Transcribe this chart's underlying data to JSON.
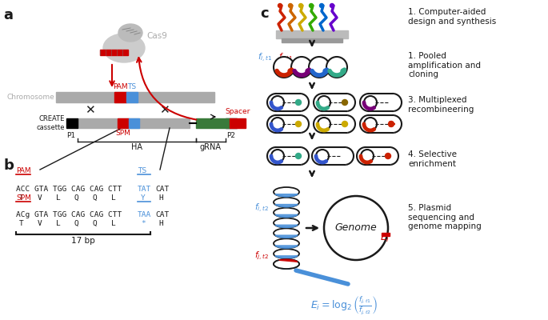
{
  "panel_a_label": "a",
  "panel_b_label": "b",
  "panel_c_label": "c",
  "cas9_label": "Cas9",
  "chromosome_label": "Chromosome",
  "pam_label": "PAM",
  "ts_label": "TS",
  "spm_label": "SPM",
  "spacer_label": "Spacer",
  "ha_label": "HA",
  "grna_label": "gRNA",
  "p1_label": "P1",
  "p2_label": "P2",
  "bp_label": "17 bp",
  "step1_text": "1. Computer-aided\ndesign and synthesis",
  "step2_text": "1. Pooled\namplification and\ncloning",
  "step3_text": "3. Multiplexed\nrecombineering",
  "step4_text": "4. Selective\nenrichment",
  "step5_text": "5. Plasmid\nsequencing and\ngenome mapping",
  "genome_label": "Genome",
  "red": "#cc0000",
  "blue": "#4a90d9",
  "gray": "#aaaaaa",
  "dark": "#1a1a1a",
  "green": "#3a7a3a",
  "bg": "#ffffff",
  "strand_colors": [
    "#cc2200",
    "#cc6600",
    "#ccaa00",
    "#33aa00",
    "#0066cc",
    "#6600cc"
  ],
  "pool_colors": [
    [
      "#cc2200",
      "#770077"
    ],
    [
      "#33aa00",
      "#008888"
    ],
    [
      "#33aa00",
      "#6600cc"
    ]
  ],
  "multi_row1_colors": [
    [
      "#3355cc",
      "#008888"
    ],
    [
      "#33aa00",
      "#008888"
    ],
    [
      "#6600cc",
      "#884400"
    ]
  ],
  "multi_row2_colors": [
    [
      "#3355cc",
      "#ccaa00"
    ],
    [
      "#ccaa00",
      "#ccaa00"
    ],
    [
      "#cc2200",
      "#cc2200"
    ]
  ],
  "sel_colors": [
    [
      "#3355cc",
      "#008888"
    ],
    [
      "#3355cc",
      "#008888"
    ],
    [
      "#cc2200",
      "#cc2200"
    ]
  ]
}
